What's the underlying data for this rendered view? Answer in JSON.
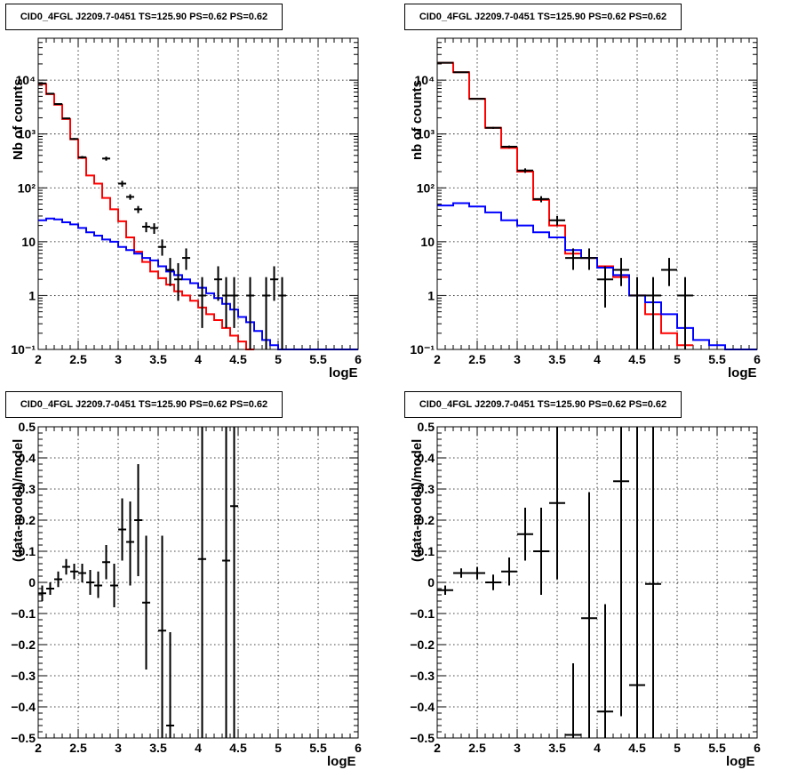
{
  "chart_data": [
    {
      "type": "line",
      "title": "CID0_4FGL J2209.7-0451 TS=125.90 PS=0.62 PS=0.62",
      "xlabel": "logE",
      "ylabel": "Nb of counts",
      "xlim": [
        2,
        6
      ],
      "ylim": [
        0.1,
        60000
      ],
      "yscale": "log",
      "grid": true,
      "x_ticks": [
        "2",
        "2.5",
        "3",
        "3.5",
        "4",
        "4.5",
        "5",
        "5.5",
        "6"
      ],
      "y_ticks": [
        {
          "v": 0.1,
          "label": "10⁻¹"
        },
        {
          "v": 1,
          "label": "1"
        },
        {
          "v": 10,
          "label": "10"
        },
        {
          "v": 100,
          "label": "10²"
        },
        {
          "v": 1000,
          "label": "10³"
        },
        {
          "v": 10000,
          "label": "10⁴"
        }
      ],
      "bin_edges": [
        2,
        2.1,
        2.2,
        2.3,
        2.4,
        2.5,
        2.6,
        2.7,
        2.8,
        2.9,
        3,
        3.1,
        3.2,
        3.3,
        3.4,
        3.5,
        3.6,
        3.7,
        3.8,
        3.9,
        4,
        4.1,
        4.2,
        4.3,
        4.4,
        4.5,
        4.6,
        4.7,
        4.8,
        4.9,
        5,
        5.1,
        5.2,
        5.3,
        5.4,
        5.5,
        5.6,
        5.7,
        5.8,
        5.9,
        6
      ],
      "series": [
        {
          "color": "#ff0000",
          "values": [
            8500,
            5500,
            3500,
            1900,
            800,
            360,
            170,
            120,
            65,
            40,
            24,
            12,
            6.5,
            4.2,
            2.8,
            2.1,
            1.6,
            1.2,
            1.0,
            0.8,
            0.6,
            0.45,
            0.35,
            0.25,
            0.18,
            0.14,
            0.1
          ]
        },
        {
          "color": "#0000ff",
          "values": [
            25,
            27,
            26,
            23,
            21,
            18,
            15,
            13,
            11,
            10,
            8,
            7,
            6,
            5,
            4.5,
            3.5,
            2.8,
            2.4,
            2.0,
            1.7,
            1.4,
            1.1,
            0.9,
            0.7,
            0.55,
            0.4,
            0.32,
            0.22,
            0.15,
            0.12,
            0.1,
            0.1,
            0.1,
            0.1,
            0.1,
            0.1,
            0.1,
            0.1,
            0.1,
            0.1
          ]
        }
      ],
      "points": [
        {
          "x": 2.05,
          "y": 8700,
          "lo": 8500,
          "hi": 8900
        },
        {
          "x": 2.15,
          "y": 5600,
          "lo": 5450,
          "hi": 5750
        },
        {
          "x": 2.25,
          "y": 3600,
          "lo": 3480,
          "hi": 3720
        },
        {
          "x": 2.35,
          "y": 1950,
          "lo": 1900,
          "hi": 2000
        },
        {
          "x": 2.45,
          "y": 810,
          "lo": 780,
          "hi": 840
        },
        {
          "x": 2.55,
          "y": 370,
          "lo": 350,
          "hi": 390
        },
        {
          "x": 2.85,
          "y": 350,
          "lo": 320,
          "hi": 380
        },
        {
          "x": 3.05,
          "y": 120,
          "lo": 105,
          "hi": 135
        },
        {
          "x": 3.15,
          "y": 68,
          "lo": 60,
          "hi": 76
        },
        {
          "x": 3.25,
          "y": 40,
          "lo": 34,
          "hi": 46
        },
        {
          "x": 3.35,
          "y": 19,
          "lo": 15,
          "hi": 23
        },
        {
          "x": 3.45,
          "y": 18,
          "lo": 14,
          "hi": 22
        },
        {
          "x": 3.55,
          "y": 8,
          "lo": 5.5,
          "hi": 11
        },
        {
          "x": 3.65,
          "y": 3,
          "lo": 1.5,
          "hi": 5
        },
        {
          "x": 3.75,
          "y": 2,
          "lo": 0.8,
          "hi": 4
        },
        {
          "x": 3.85,
          "y": 5,
          "lo": 3,
          "hi": 7.5
        },
        {
          "x": 4.05,
          "y": 1,
          "lo": 0.25,
          "hi": 2.2
        },
        {
          "x": 4.25,
          "y": 2,
          "lo": 0.8,
          "hi": 3.5
        },
        {
          "x": 4.35,
          "y": 1,
          "lo": 0.25,
          "hi": 2.2
        },
        {
          "x": 4.45,
          "y": 1,
          "lo": 0.25,
          "hi": 2.2
        },
        {
          "x": 4.65,
          "y": 1,
          "lo": 0.1,
          "hi": 2.2
        },
        {
          "x": 4.85,
          "y": 1,
          "lo": 0.1,
          "hi": 2.2
        },
        {
          "x": 4.95,
          "y": 2,
          "lo": 0.8,
          "hi": 3.5
        },
        {
          "x": 5.05,
          "y": 1,
          "lo": 0.1,
          "hi": 2.2
        }
      ]
    },
    {
      "type": "line",
      "title": "CID0_4FGL J2209.7-0451 TS=125.90 PS=0.62 PS=0.62",
      "xlabel": "logE",
      "ylabel": "nb of counts",
      "xlim": [
        2,
        6
      ],
      "ylim": [
        0.1,
        60000
      ],
      "yscale": "log",
      "grid": true,
      "x_ticks": [
        "2",
        "2.5",
        "3",
        "3.5",
        "4",
        "4.5",
        "5",
        "5.5",
        "6"
      ],
      "y_ticks": [
        {
          "v": 0.1,
          "label": "10⁻¹"
        },
        {
          "v": 1,
          "label": "1"
        },
        {
          "v": 10,
          "label": "10"
        },
        {
          "v": 100,
          "label": "10²"
        },
        {
          "v": 1000,
          "label": "10³"
        },
        {
          "v": 10000,
          "label": "10⁴"
        }
      ],
      "bin_edges": [
        2,
        2.2,
        2.4,
        2.6,
        2.8,
        3,
        3.2,
        3.4,
        3.6,
        3.8,
        4,
        4.2,
        4.4,
        4.6,
        4.8,
        5,
        5.2,
        5.4,
        5.6,
        5.8,
        6
      ],
      "series": [
        {
          "color": "#ff0000",
          "values": [
            21000,
            14000,
            4500,
            1300,
            550,
            200,
            60,
            20,
            6,
            5,
            3.5,
            2.2,
            1.0,
            0.45,
            0.2,
            0.12
          ]
        },
        {
          "color": "#0000ff",
          "values": [
            47,
            52,
            45,
            35,
            25,
            20,
            15,
            12,
            7,
            5,
            3.3,
            2.4,
            1.0,
            0.75,
            0.45,
            0.25,
            0.15,
            0.12,
            0.1,
            0.1
          ]
        }
      ],
      "points": [
        {
          "x": 2.1,
          "y": 21000,
          "lo": 20700,
          "hi": 21300
        },
        {
          "x": 2.3,
          "y": 14000,
          "lo": 13750,
          "hi": 14250
        },
        {
          "x": 2.5,
          "y": 4500,
          "lo": 4350,
          "hi": 4650
        },
        {
          "x": 2.7,
          "y": 1300,
          "lo": 1250,
          "hi": 1350
        },
        {
          "x": 2.9,
          "y": 580,
          "lo": 550,
          "hi": 610
        },
        {
          "x": 3.1,
          "y": 210,
          "lo": 190,
          "hi": 230
        },
        {
          "x": 3.3,
          "y": 62,
          "lo": 54,
          "hi": 70
        },
        {
          "x": 3.5,
          "y": 25,
          "lo": 20,
          "hi": 30
        },
        {
          "x": 3.7,
          "y": 5,
          "lo": 3,
          "hi": 7.5
        },
        {
          "x": 3.9,
          "y": 5,
          "lo": 3,
          "hi": 7.5
        },
        {
          "x": 4.1,
          "y": 2,
          "lo": 0.6,
          "hi": 3.5
        },
        {
          "x": 4.3,
          "y": 3,
          "lo": 1.5,
          "hi": 5
        },
        {
          "x": 4.5,
          "y": 1,
          "lo": 0.1,
          "hi": 2.2
        },
        {
          "x": 4.7,
          "y": 1,
          "lo": 0.1,
          "hi": 2.2
        },
        {
          "x": 4.9,
          "y": 3,
          "lo": 1.5,
          "hi": 5
        },
        {
          "x": 5.1,
          "y": 1,
          "lo": 0.1,
          "hi": 2.2
        }
      ]
    },
    {
      "type": "scatter",
      "title": "CID0_4FGL J2209.7-0451 TS=125.90 PS=0.62 PS=0.62",
      "xlabel": "logE",
      "ylabel": "(data-model)/model",
      "xlim": [
        2,
        6
      ],
      "ylim": [
        -0.5,
        0.5
      ],
      "grid": true,
      "x_ticks": [
        "2",
        "2.5",
        "3",
        "3.5",
        "4",
        "4.5",
        "5",
        "5.5",
        "6"
      ],
      "y_ticks": [
        {
          "v": -0.5,
          "label": "−0.5"
        },
        {
          "v": -0.4,
          "label": "−0.4"
        },
        {
          "v": -0.3,
          "label": "−0.3"
        },
        {
          "v": -0.2,
          "label": "−0.2"
        },
        {
          "v": -0.1,
          "label": "−0.1"
        },
        {
          "v": 0,
          "label": "0"
        },
        {
          "v": 0.1,
          "label": "0.1"
        },
        {
          "v": 0.2,
          "label": "0.2"
        },
        {
          "v": 0.3,
          "label": "0.3"
        },
        {
          "v": 0.4,
          "label": "0.4"
        },
        {
          "v": 0.5,
          "label": "0.5"
        }
      ],
      "xerr": 0.05,
      "points": [
        {
          "x": 2.05,
          "y": -0.035,
          "lo": -0.06,
          "hi": -0.01
        },
        {
          "x": 2.15,
          "y": -0.02,
          "lo": -0.04,
          "hi": 0.0
        },
        {
          "x": 2.25,
          "y": 0.01,
          "lo": -0.015,
          "hi": 0.035
        },
        {
          "x": 2.35,
          "y": 0.05,
          "lo": 0.025,
          "hi": 0.075
        },
        {
          "x": 2.45,
          "y": 0.035,
          "lo": 0.01,
          "hi": 0.06
        },
        {
          "x": 2.55,
          "y": 0.03,
          "lo": 0.0,
          "hi": 0.06
        },
        {
          "x": 2.65,
          "y": 0.0,
          "lo": -0.04,
          "hi": 0.04
        },
        {
          "x": 2.75,
          "y": -0.01,
          "lo": -0.05,
          "hi": 0.035
        },
        {
          "x": 2.85,
          "y": 0.065,
          "lo": 0.01,
          "hi": 0.12
        },
        {
          "x": 2.95,
          "y": -0.01,
          "lo": -0.08,
          "hi": 0.06
        },
        {
          "x": 3.05,
          "y": 0.17,
          "lo": 0.07,
          "hi": 0.27
        },
        {
          "x": 3.15,
          "y": 0.13,
          "lo": -0.01,
          "hi": 0.26
        },
        {
          "x": 3.25,
          "y": 0.2,
          "lo": 0.02,
          "hi": 0.38
        },
        {
          "x": 3.35,
          "y": -0.065,
          "lo": -0.28,
          "hi": 0.15
        },
        {
          "x": 3.55,
          "y": -0.155,
          "lo": -0.5,
          "hi": 0.15
        },
        {
          "x": 3.65,
          "y": -0.46,
          "lo": -0.5,
          "hi": -0.16
        },
        {
          "x": 4.05,
          "y": 0.075,
          "lo": -0.5,
          "hi": 0.5
        },
        {
          "x": 4.35,
          "y": 0.07,
          "lo": -0.5,
          "hi": 0.5
        },
        {
          "x": 4.45,
          "y": 0.245,
          "lo": -0.5,
          "hi": 0.5
        }
      ]
    },
    {
      "type": "scatter",
      "title": "CID0_4FGL J2209.7-0451 TS=125.90 PS=0.62 PS=0.62",
      "xlabel": "logE",
      "ylabel": "(data-model)/model",
      "xlim": [
        2,
        6
      ],
      "ylim": [
        -0.5,
        0.5
      ],
      "grid": true,
      "x_ticks": [
        "2",
        "2.5",
        "3",
        "3.5",
        "4",
        "4.5",
        "5",
        "5.5",
        "6"
      ],
      "y_ticks": [
        {
          "v": -0.5,
          "label": "−0.5"
        },
        {
          "v": -0.4,
          "label": "−0.4"
        },
        {
          "v": -0.3,
          "label": "−0.3"
        },
        {
          "v": -0.2,
          "label": "−0.2"
        },
        {
          "v": -0.1,
          "label": "−0.1"
        },
        {
          "v": 0,
          "label": "0"
        },
        {
          "v": 0.1,
          "label": "0.1"
        },
        {
          "v": 0.2,
          "label": "0.2"
        },
        {
          "v": 0.3,
          "label": "0.3"
        },
        {
          "v": 0.4,
          "label": "0.4"
        },
        {
          "v": 0.5,
          "label": "0.5"
        }
      ],
      "xerr": 0.1,
      "points": [
        {
          "x": 2.1,
          "y": -0.025,
          "lo": -0.04,
          "hi": -0.01
        },
        {
          "x": 2.3,
          "y": 0.03,
          "lo": 0.015,
          "hi": 0.045
        },
        {
          "x": 2.5,
          "y": 0.03,
          "lo": 0.01,
          "hi": 0.05
        },
        {
          "x": 2.7,
          "y": 0.0,
          "lo": -0.025,
          "hi": 0.025
        },
        {
          "x": 2.9,
          "y": 0.035,
          "lo": -0.01,
          "hi": 0.08
        },
        {
          "x": 3.1,
          "y": 0.155,
          "lo": 0.07,
          "hi": 0.24
        },
        {
          "x": 3.3,
          "y": 0.1,
          "lo": -0.04,
          "hi": 0.24
        },
        {
          "x": 3.5,
          "y": 0.255,
          "lo": 0.01,
          "hi": 0.5
        },
        {
          "x": 3.7,
          "y": -0.49,
          "lo": -0.5,
          "hi": -0.26
        },
        {
          "x": 3.9,
          "y": -0.115,
          "lo": -0.5,
          "hi": 0.29
        },
        {
          "x": 4.1,
          "y": -0.415,
          "lo": -0.5,
          "hi": -0.07
        },
        {
          "x": 4.3,
          "y": 0.325,
          "lo": -0.43,
          "hi": 0.5
        },
        {
          "x": 4.5,
          "y": -0.33,
          "lo": -0.5,
          "hi": 0.5
        },
        {
          "x": 4.7,
          "y": -0.005,
          "lo": -0.5,
          "hi": 0.5
        }
      ]
    }
  ]
}
